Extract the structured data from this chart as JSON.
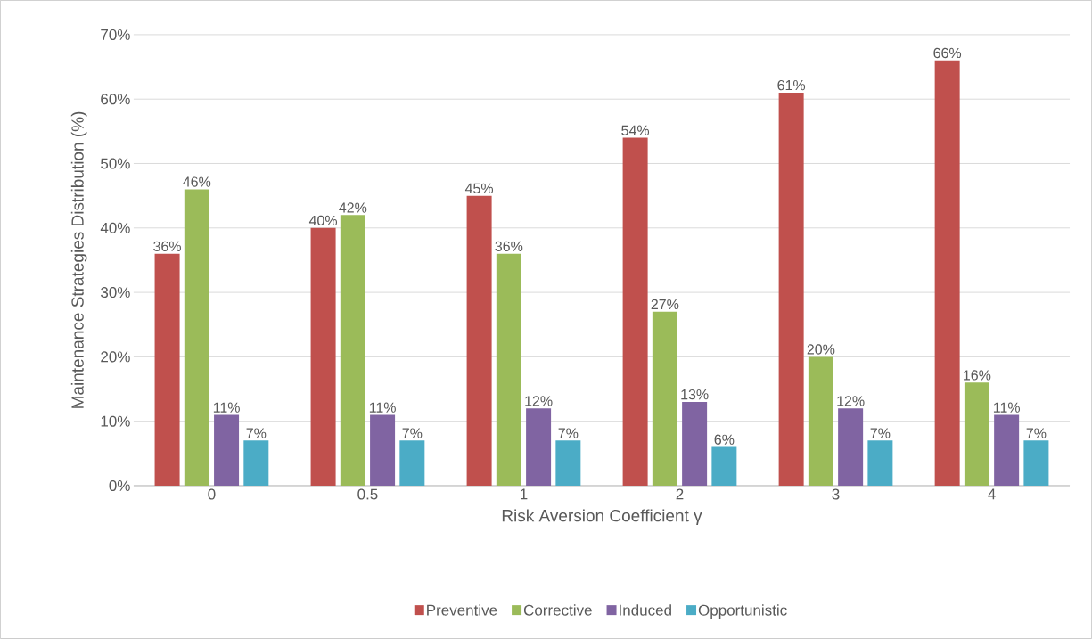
{
  "chart_data": {
    "type": "bar",
    "xlabel": "Risk Aversion Coefficient γ",
    "ylabel": "Maintenance Strategies Distribution (%)",
    "categories": [
      "0",
      "0.5",
      "1",
      "2",
      "3",
      "4"
    ],
    "series": [
      {
        "name": "Preventive",
        "color": "#c0504d",
        "values": [
          36,
          40,
          45,
          54,
          61,
          66
        ],
        "value_labels": [
          "36%",
          "40%",
          "45%",
          "54%",
          "61%",
          "66%"
        ]
      },
      {
        "name": "Corrective",
        "color": "#9bbb59",
        "values": [
          46,
          42,
          36,
          27,
          20,
          16
        ],
        "value_labels": [
          "46%",
          "42%",
          "36%",
          "27%",
          "20%",
          "16%"
        ]
      },
      {
        "name": "Induced",
        "color": "#8064a2",
        "values": [
          11,
          11,
          12,
          13,
          12,
          11
        ],
        "value_labels": [
          "11%",
          "11%",
          "12%",
          "13%",
          "12%",
          "11%"
        ]
      },
      {
        "name": "Opportunistic",
        "color": "#4bacc6",
        "values": [
          7,
          7,
          7,
          6,
          7,
          7
        ],
        "value_labels": [
          "7%",
          "7%",
          "7%",
          "6%",
          "7%",
          "7%"
        ]
      }
    ],
    "ylim": [
      0,
      70
    ],
    "yticks": [
      {
        "value": 0,
        "label": "0%"
      },
      {
        "value": 10,
        "label": "10%"
      },
      {
        "value": 20,
        "label": "20%"
      },
      {
        "value": 30,
        "label": "30%"
      },
      {
        "value": 40,
        "label": "40%"
      },
      {
        "value": 50,
        "label": "50%"
      },
      {
        "value": 60,
        "label": "60%"
      },
      {
        "value": 70,
        "label": "70%"
      }
    ],
    "grid": "y",
    "legend": "bottom"
  }
}
